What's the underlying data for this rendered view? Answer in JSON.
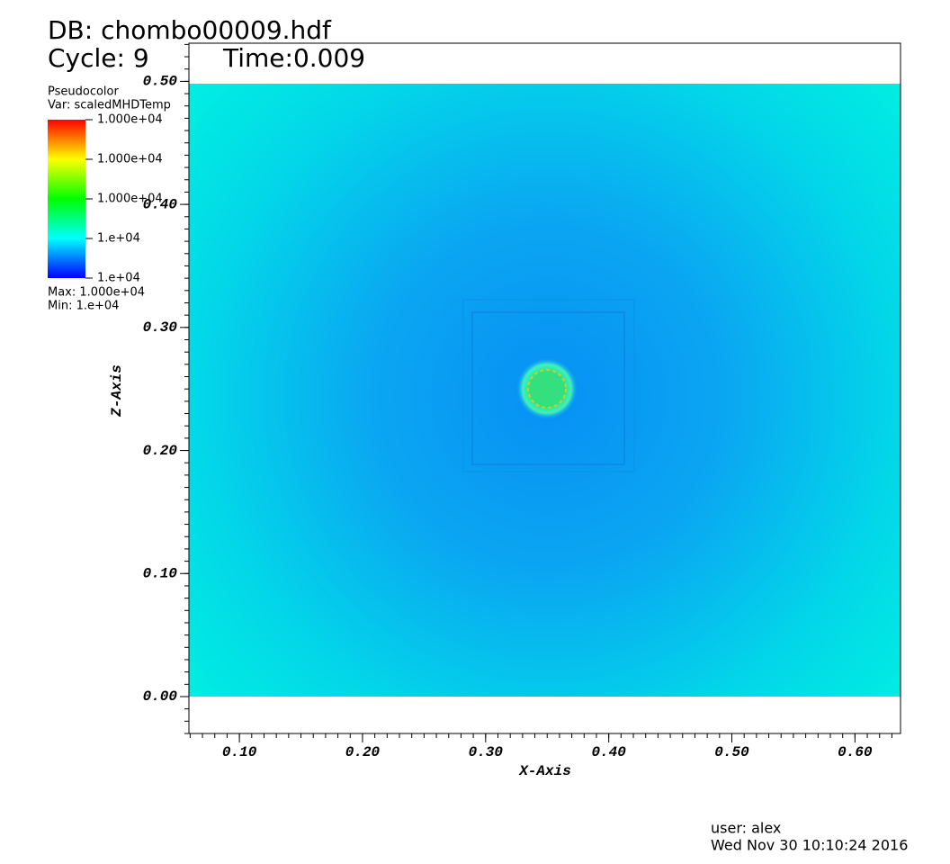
{
  "chart_data": {
    "type": "pseudocolor",
    "title": "DB: chombo00009.hdf",
    "cycle": "Cycle: 9",
    "time": "Time:0.009",
    "legend_title": "Pseudocolor",
    "legend_var": "Var: scaledMHDTemp",
    "legend_labels": [
      "1.000e+04",
      "1.000e+04",
      "1.000e+04",
      "1.e+04",
      "1.e+04"
    ],
    "legend_max": "Max:  1.000e+04",
    "legend_min": "Min:  1.e+04",
    "xlabel": "X-Axis",
    "ylabel": "Z-Axis",
    "xlim": [
      0.059,
      0.637
    ],
    "ylim": [
      -0.03,
      0.531
    ],
    "xticks": [
      {
        "value": 0.1,
        "label": "0.10"
      },
      {
        "value": 0.2,
        "label": "0.20"
      },
      {
        "value": 0.3,
        "label": "0.30"
      },
      {
        "value": 0.4,
        "label": "0.40"
      },
      {
        "value": 0.5,
        "label": "0.50"
      },
      {
        "value": 0.6,
        "label": "0.60"
      }
    ],
    "yticks": [
      {
        "value": 0,
        "label": "0.00"
      },
      {
        "value": 0.1,
        "label": "0.10"
      },
      {
        "value": 0.2,
        "label": "0.20"
      },
      {
        "value": 0.3,
        "label": "0.30"
      },
      {
        "value": 0.4,
        "label": "0.40"
      },
      {
        "value": 0.5,
        "label": "0.50"
      }
    ],
    "user": "user: alex",
    "date": "Wed Nov 30 10:10:24 2016"
  }
}
